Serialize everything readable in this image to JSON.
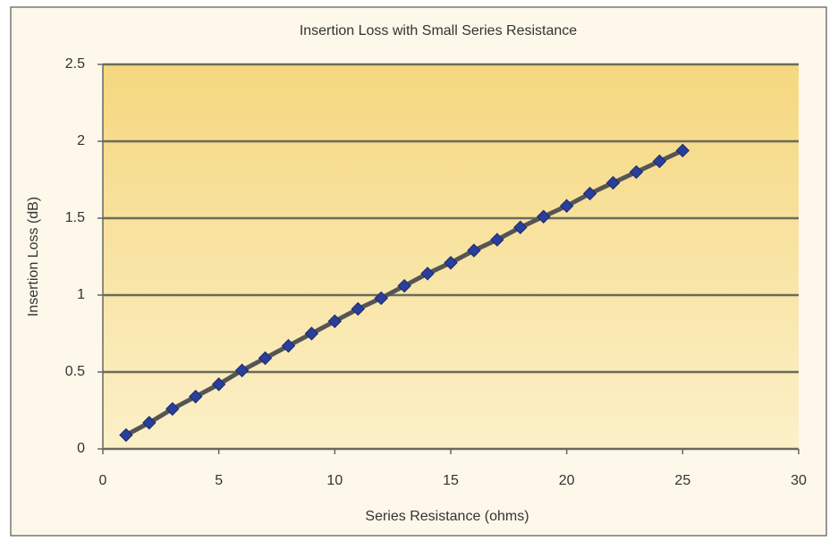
{
  "chart_data": {
    "type": "line",
    "title": "Insertion Loss with Small Series Resistance",
    "xlabel": "Series Resistance (ohms)",
    "ylabel": "Insertion Loss (dB)",
    "x": [
      1,
      2,
      3,
      4,
      5,
      6,
      7,
      8,
      9,
      10,
      11,
      12,
      13,
      14,
      15,
      16,
      17,
      18,
      19,
      20,
      21,
      22,
      23,
      24,
      25
    ],
    "values": [
      0.09,
      0.17,
      0.26,
      0.34,
      0.42,
      0.51,
      0.59,
      0.67,
      0.75,
      0.83,
      0.91,
      0.98,
      1.06,
      1.14,
      1.21,
      1.29,
      1.36,
      1.44,
      1.51,
      1.58,
      1.66,
      1.73,
      1.8,
      1.87,
      1.94
    ],
    "color": "#2a3f9a",
    "line_color": "#555555",
    "xlim": [
      0,
      30
    ],
    "xticks": [
      0,
      5,
      10,
      15,
      20,
      25,
      30
    ],
    "ylim": [
      0,
      2.5
    ],
    "yticks": [
      0,
      0.5,
      1,
      1.5,
      2,
      2.5
    ],
    "grid": true
  }
}
